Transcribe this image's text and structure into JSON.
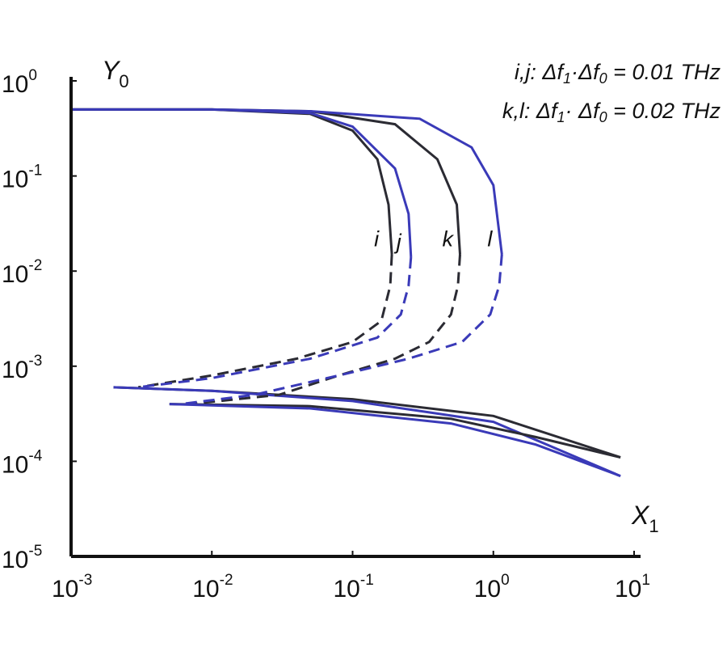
{
  "chart_data": {
    "type": "line",
    "title": "",
    "xscale": "log",
    "yscale": "log",
    "xlim": [
      0.001,
      10
    ],
    "ylim": [
      1e-05,
      1
    ],
    "xlabel": {
      "base": "X",
      "sub": "1"
    },
    "ylabel": {
      "base": "Y",
      "sub": "0"
    },
    "x_ticks": [
      {
        "base": "10",
        "exp": "-3"
      },
      {
        "base": "10",
        "exp": "-2"
      },
      {
        "base": "10",
        "exp": "-1"
      },
      {
        "base": "10",
        "exp": "0"
      },
      {
        "base": "10",
        "exp": "1"
      }
    ],
    "y_ticks": [
      {
        "base": "10",
        "exp": "0"
      },
      {
        "base": "10",
        "exp": "-1"
      },
      {
        "base": "10",
        "exp": "-2"
      },
      {
        "base": "10",
        "exp": "-3"
      },
      {
        "base": "10",
        "exp": "-4"
      },
      {
        "base": "10",
        "exp": "-5"
      }
    ],
    "annotations": [
      {
        "lines": [
          "i,j: Δf",
          "1",
          "·Δf",
          "0",
          " = 0.01 THz"
        ]
      },
      {
        "lines": [
          "k,l: Δf",
          "1",
          "· Δf",
          "0",
          " = 0.02 THz"
        ]
      }
    ],
    "series": [
      {
        "label": "i",
        "color": "#2b2b33",
        "upper": [
          [
            0.001,
            0.5
          ],
          [
            0.01,
            0.5
          ],
          [
            0.05,
            0.45
          ],
          [
            0.1,
            0.3
          ],
          [
            0.15,
            0.15
          ],
          [
            0.18,
            0.05
          ],
          [
            0.19,
            0.015
          ]
        ],
        "middle": [
          [
            0.19,
            0.015
          ],
          [
            0.185,
            0.007
          ],
          [
            0.16,
            0.003
          ],
          [
            0.1,
            0.0018
          ],
          [
            0.04,
            0.0012
          ],
          [
            0.01,
            0.0008
          ],
          [
            0.003,
            0.0006
          ]
        ],
        "lower": [
          [
            0.002,
            0.0006
          ],
          [
            0.01,
            0.00055
          ],
          [
            0.1,
            0.00045
          ],
          [
            1,
            0.0003
          ],
          [
            8,
            0.00011
          ]
        ]
      },
      {
        "label": "j",
        "color": "#3a3ab8",
        "upper": [
          [
            0.001,
            0.5
          ],
          [
            0.01,
            0.5
          ],
          [
            0.05,
            0.46
          ],
          [
            0.1,
            0.33
          ],
          [
            0.2,
            0.12
          ],
          [
            0.25,
            0.04
          ],
          [
            0.26,
            0.014
          ]
        ],
        "middle": [
          [
            0.26,
            0.014
          ],
          [
            0.25,
            0.007
          ],
          [
            0.22,
            0.0035
          ],
          [
            0.15,
            0.002
          ],
          [
            0.05,
            0.0012
          ],
          [
            0.01,
            0.00075
          ],
          [
            0.003,
            0.0006
          ]
        ],
        "lower": [
          [
            0.002,
            0.0006
          ],
          [
            0.01,
            0.00055
          ],
          [
            0.1,
            0.00043
          ],
          [
            1,
            0.00026
          ],
          [
            8,
            7e-05
          ]
        ]
      },
      {
        "label": "k",
        "color": "#2b2b33",
        "upper": [
          [
            0.001,
            0.5
          ],
          [
            0.01,
            0.5
          ],
          [
            0.05,
            0.48
          ],
          [
            0.2,
            0.35
          ],
          [
            0.4,
            0.15
          ],
          [
            0.55,
            0.05
          ],
          [
            0.58,
            0.015
          ]
        ],
        "middle": [
          [
            0.58,
            0.015
          ],
          [
            0.56,
            0.007
          ],
          [
            0.5,
            0.0035
          ],
          [
            0.35,
            0.0018
          ],
          [
            0.2,
            0.0012
          ],
          [
            0.08,
            0.0008
          ],
          [
            0.03,
            0.0005
          ],
          [
            0.007,
            0.0004
          ]
        ],
        "lower": [
          [
            0.005,
            0.0004
          ],
          [
            0.05,
            0.00038
          ],
          [
            0.5,
            0.00028
          ],
          [
            2,
            0.00018
          ],
          [
            8,
            0.00011
          ]
        ]
      },
      {
        "label": "l",
        "color": "#3a3ab8",
        "upper": [
          [
            0.001,
            0.5
          ],
          [
            0.01,
            0.5
          ],
          [
            0.05,
            0.48
          ],
          [
            0.3,
            0.4
          ],
          [
            0.7,
            0.2
          ],
          [
            1,
            0.08
          ],
          [
            1.15,
            0.015
          ]
        ],
        "middle": [
          [
            1.15,
            0.015
          ],
          [
            1.1,
            0.007
          ],
          [
            0.95,
            0.0035
          ],
          [
            0.6,
            0.0018
          ],
          [
            0.25,
            0.0012
          ],
          [
            0.08,
            0.0008
          ],
          [
            0.02,
            0.0005
          ],
          [
            0.006,
            0.0004
          ]
        ],
        "lower": [
          [
            0.005,
            0.0004
          ],
          [
            0.05,
            0.00036
          ],
          [
            0.5,
            0.00025
          ],
          [
            2,
            0.00015
          ],
          [
            8,
            7e-05
          ]
        ]
      }
    ]
  }
}
